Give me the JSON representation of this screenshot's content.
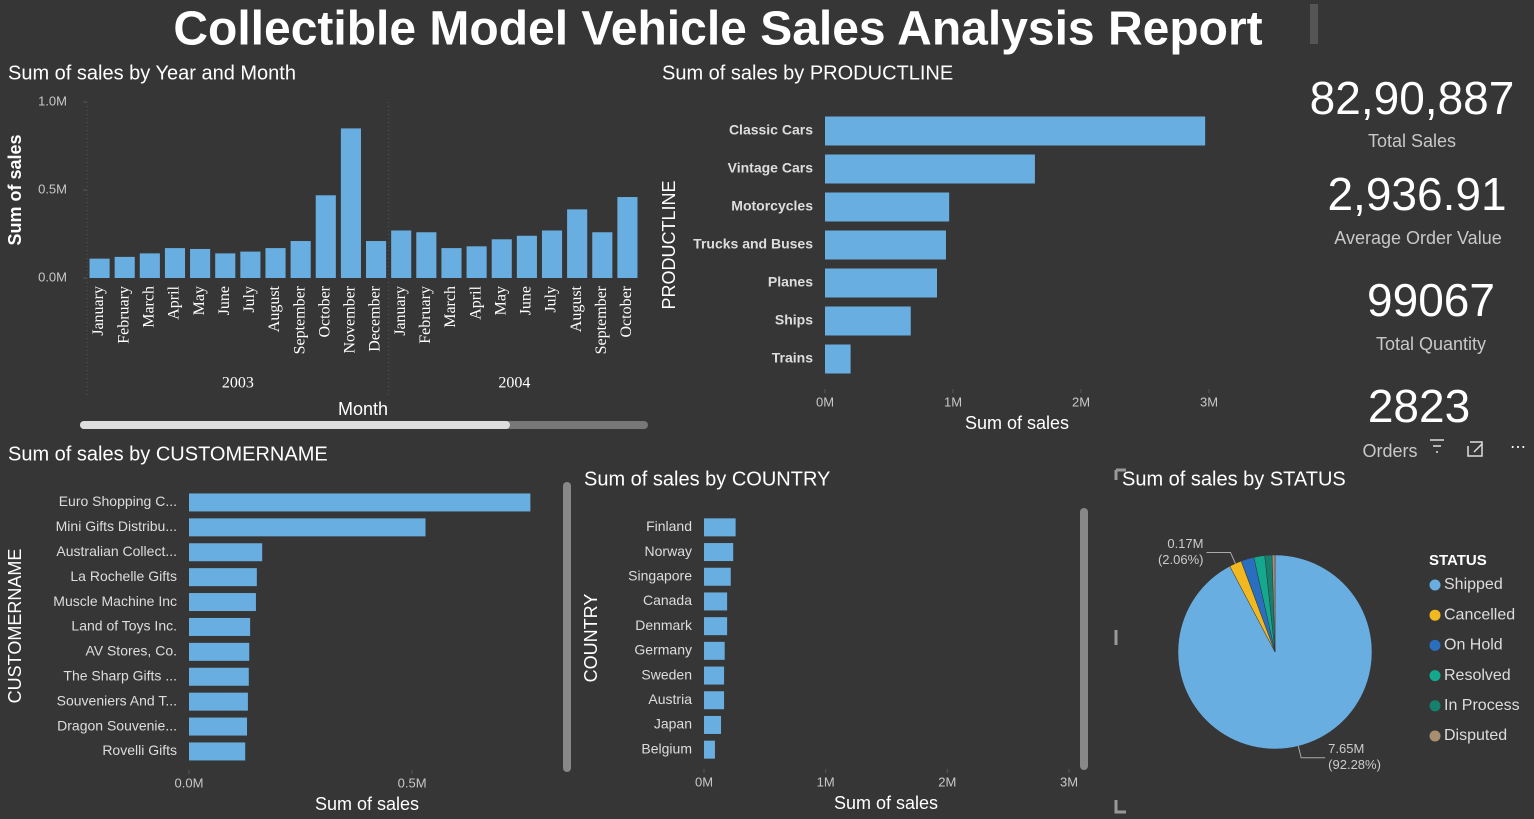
{
  "title": "Collectible Model Vehicle Sales Analysis Report",
  "cards": [
    {
      "value": "82,90,887",
      "label": "Total Sales"
    },
    {
      "value": "2,936.91",
      "label": "Average Order Value"
    },
    {
      "value": "99067",
      "label": "Total Quantity"
    },
    {
      "value": "2823",
      "label": "Orders"
    }
  ],
  "chart_data": [
    {
      "type": "bar",
      "title": "Sum of sales by Year and Month",
      "x_label": "Month",
      "y_label": "Sum of sales",
      "color": "#69aee0",
      "groups": [
        {
          "name": "2003",
          "categories": [
            "January",
            "February",
            "March",
            "April",
            "May",
            "June",
            "July",
            "August",
            "September",
            "October",
            "November",
            "December"
          ],
          "values": [
            110000,
            120000,
            140000,
            170000,
            165000,
            140000,
            150000,
            170000,
            210000,
            470000,
            850000,
            210000
          ]
        },
        {
          "name": "2004",
          "categories": [
            "January",
            "February",
            "March",
            "April",
            "May",
            "June",
            "July",
            "August",
            "September",
            "October"
          ],
          "values": [
            270000,
            260000,
            170000,
            180000,
            220000,
            240000,
            270000,
            390000,
            260000,
            460000
          ]
        }
      ],
      "ylim": [
        0,
        1000000
      ],
      "yticks": [
        {
          "value": 0,
          "label": "0.0M"
        },
        {
          "value": 500000,
          "label": "0.5M"
        },
        {
          "value": 1000000,
          "label": "1.0M"
        }
      ]
    },
    {
      "type": "hbar",
      "title": "Sum of sales by PRODUCTLINE",
      "x_label": "Sum of sales",
      "y_label": "PRODUCTLINE",
      "color": "#69aee0",
      "categories": [
        "Classic Cars",
        "Vintage Cars",
        "Motorcycles",
        "Trucks and Buses",
        "Planes",
        "Ships",
        "Trains"
      ],
      "values": [
        2970000,
        1640000,
        970000,
        945000,
        875000,
        670000,
        200000
      ],
      "xlim": [
        0,
        3000000
      ],
      "xticks": [
        {
          "value": 0,
          "label": "0M"
        },
        {
          "value": 1000000,
          "label": "1M"
        },
        {
          "value": 2000000,
          "label": "2M"
        },
        {
          "value": 3000000,
          "label": "3M"
        }
      ]
    },
    {
      "type": "hbar",
      "title": "Sum of sales by CUSTOMERNAME",
      "x_label": "Sum of sales",
      "y_label": "CUSTOMERNAME",
      "color": "#69aee0",
      "categories": [
        "Euro Shopping C...",
        "Mini Gifts Distribu...",
        "Australian Collect...",
        "La Rochelle Gifts",
        "Muscle Machine Inc",
        "Land of Toys Inc.",
        "AV Stores, Co.",
        "The Sharp Gifts ...",
        "Souveniers And T...",
        "Dragon Souvenie...",
        "Rovelli Gifts"
      ],
      "values": [
        765000,
        530000,
        164000,
        152000,
        150000,
        137000,
        135000,
        134000,
        132000,
        130000,
        126000
      ],
      "xlim": [
        0,
        800000
      ],
      "xticks": [
        {
          "value": 0,
          "label": "0.0M"
        },
        {
          "value": 500000,
          "label": "0.5M"
        }
      ]
    },
    {
      "type": "hbar",
      "title": "Sum of sales by COUNTRY",
      "x_label": "Sum of sales",
      "y_label": "COUNTRY",
      "color": "#69aee0",
      "categories": [
        "Finland",
        "Norway",
        "Singapore",
        "Canada",
        "Denmark",
        "Germany",
        "Sweden",
        "Austria",
        "Japan",
        "Belgium"
      ],
      "values": [
        260000,
        240000,
        220000,
        190000,
        190000,
        170000,
        165000,
        165000,
        140000,
        90000
      ],
      "xlim": [
        0,
        3000000
      ],
      "xticks": [
        {
          "value": 0,
          "label": "0M"
        },
        {
          "value": 1000000,
          "label": "1M"
        },
        {
          "value": 2000000,
          "label": "2M"
        },
        {
          "value": 3000000,
          "label": "3M"
        }
      ]
    },
    {
      "type": "pie",
      "title": "Sum of sales by STATUS",
      "legend_title": "STATUS",
      "legend": "right",
      "categories": [
        "Shipped",
        "Cancelled",
        "On Hold",
        "Resolved",
        "In Process",
        "Disputed"
      ],
      "values": [
        7650000,
        170000,
        180000,
        150000,
        100000,
        40000
      ],
      "value_labels": [
        "7.65M",
        "0.17M",
        null,
        null,
        null,
        null
      ],
      "percent_labels": [
        "(92.28%)",
        "(2.06%)",
        null,
        null,
        null,
        null
      ],
      "colors": [
        "#69aee0",
        "#f2b81f",
        "#2a6fbf",
        "#14a88e",
        "#16806f",
        "#a88f72"
      ]
    }
  ]
}
